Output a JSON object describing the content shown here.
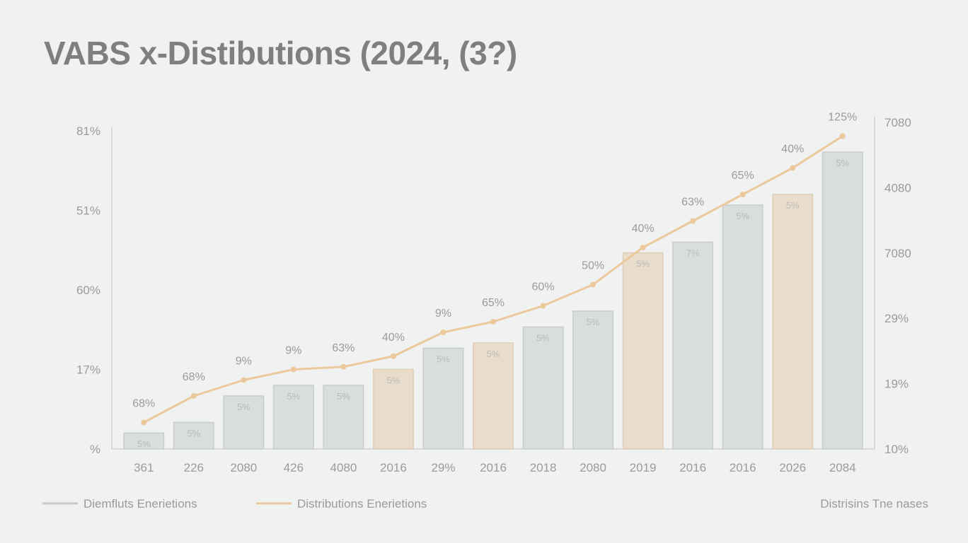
{
  "chart_data": {
    "type": "bar",
    "title": "VABS x-Distibutions (2024, (3?)",
    "categories": [
      "361",
      "226",
      "2080",
      "426",
      "4080",
      "2016",
      "29%",
      "2016",
      "2018",
      "2080",
      "2019",
      "2016",
      "2016",
      "2026",
      "2084"
    ],
    "series": [
      {
        "name": "Diemfluts Enerietions",
        "type": "bar",
        "values": [
          3,
          5,
          10,
          12,
          12,
          15,
          19,
          20,
          23,
          26,
          37,
          39,
          46,
          48,
          56
        ],
        "bar_labels": [
          "5%",
          "5%",
          "5%",
          "5%",
          "5%",
          "5%",
          "5%",
          "5%",
          "5%",
          "5%",
          "5%",
          "7%",
          "5%",
          "5%",
          "5%"
        ],
        "highlight": [
          false,
          false,
          false,
          false,
          false,
          true,
          false,
          true,
          false,
          false,
          true,
          false,
          false,
          true,
          false
        ]
      },
      {
        "name": "Distributions Enerietions",
        "type": "line",
        "values": [
          5,
          10,
          13,
          15,
          15.5,
          17.5,
          22,
          24,
          27,
          31,
          38,
          43,
          48,
          53,
          59
        ],
        "point_labels": [
          "68%",
          "68%",
          "9%",
          "9%",
          "63%",
          "40%",
          "9%",
          "65%",
          "60%",
          "50%",
          "40%",
          "63%",
          "65%",
          "40%",
          "125%"
        ]
      }
    ],
    "ylim": [
      0,
      60
    ],
    "left_axis_ticks": [
      "%",
      "17%",
      "60%",
      "51%",
      "81%"
    ],
    "right_axis_ticks": [
      "10%",
      "19%",
      "29%",
      "7080",
      "4080",
      "7080"
    ],
    "grid": false,
    "legend": {
      "placement": "bottom-left",
      "note": "Distrisins Tne nases"
    },
    "colors": {
      "bar": "#d9dddb",
      "bar_edge": "#c8ccca",
      "highlight": "#e9dccb",
      "highlight_edge": "#dfcdb6",
      "line": "#ecc99c",
      "axis": "#cfd2d0",
      "text": "#9a9c9b"
    }
  }
}
